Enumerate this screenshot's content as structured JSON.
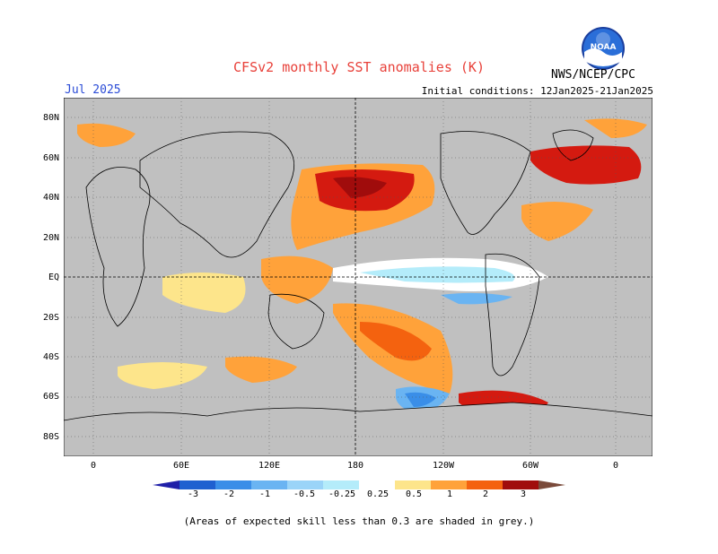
{
  "header": {
    "title": "CFSv2 monthly SST anomalies (K)",
    "valid_month": "Jul 2025",
    "initial_conditions": "Initial conditions: 12Jan2025-21Jan2025",
    "agency": "NWS/NCEP/CPC",
    "logo_text": "NOAA"
  },
  "map": {
    "projection": "cylindrical equidistant",
    "lat_labels": [
      "80N",
      "60N",
      "40N",
      "20N",
      "EQ",
      "20S",
      "40S",
      "60S",
      "80S"
    ],
    "lon_labels": [
      "0",
      "60E",
      "120E",
      "180",
      "120W",
      "60W",
      "0"
    ],
    "skill_mask_color": "#c0c0c0",
    "warm_regions": [
      "North Pacific",
      "Western tropical Pacific",
      "Gulf of Mexico / Caribbean",
      "North Atlantic",
      "South Pacific",
      "Southern Ocean (near South America)"
    ],
    "cool_regions": [
      "Central/eastern equatorial Pacific",
      "Southeast Pacific",
      "Southern Ocean (south of Australia/NZ)"
    ]
  },
  "colorbar": {
    "labels": [
      "-3",
      "-2",
      "-1",
      "-0.5",
      "-0.25",
      "0.25",
      "0.5",
      "1",
      "2",
      "3"
    ],
    "colors": [
      "#1f1fa8",
      "#1f60d0",
      "#3a8ee8",
      "#6ab4f2",
      "#b4ecfa",
      "#ffffff",
      "#fde58b",
      "#ffa23a",
      "#f4620f",
      "#d41a10",
      "#a00c0c",
      "#7a4a3a"
    ]
  },
  "footnote": "(Areas of expected skill less than 0.3 are shaded in grey.)"
}
